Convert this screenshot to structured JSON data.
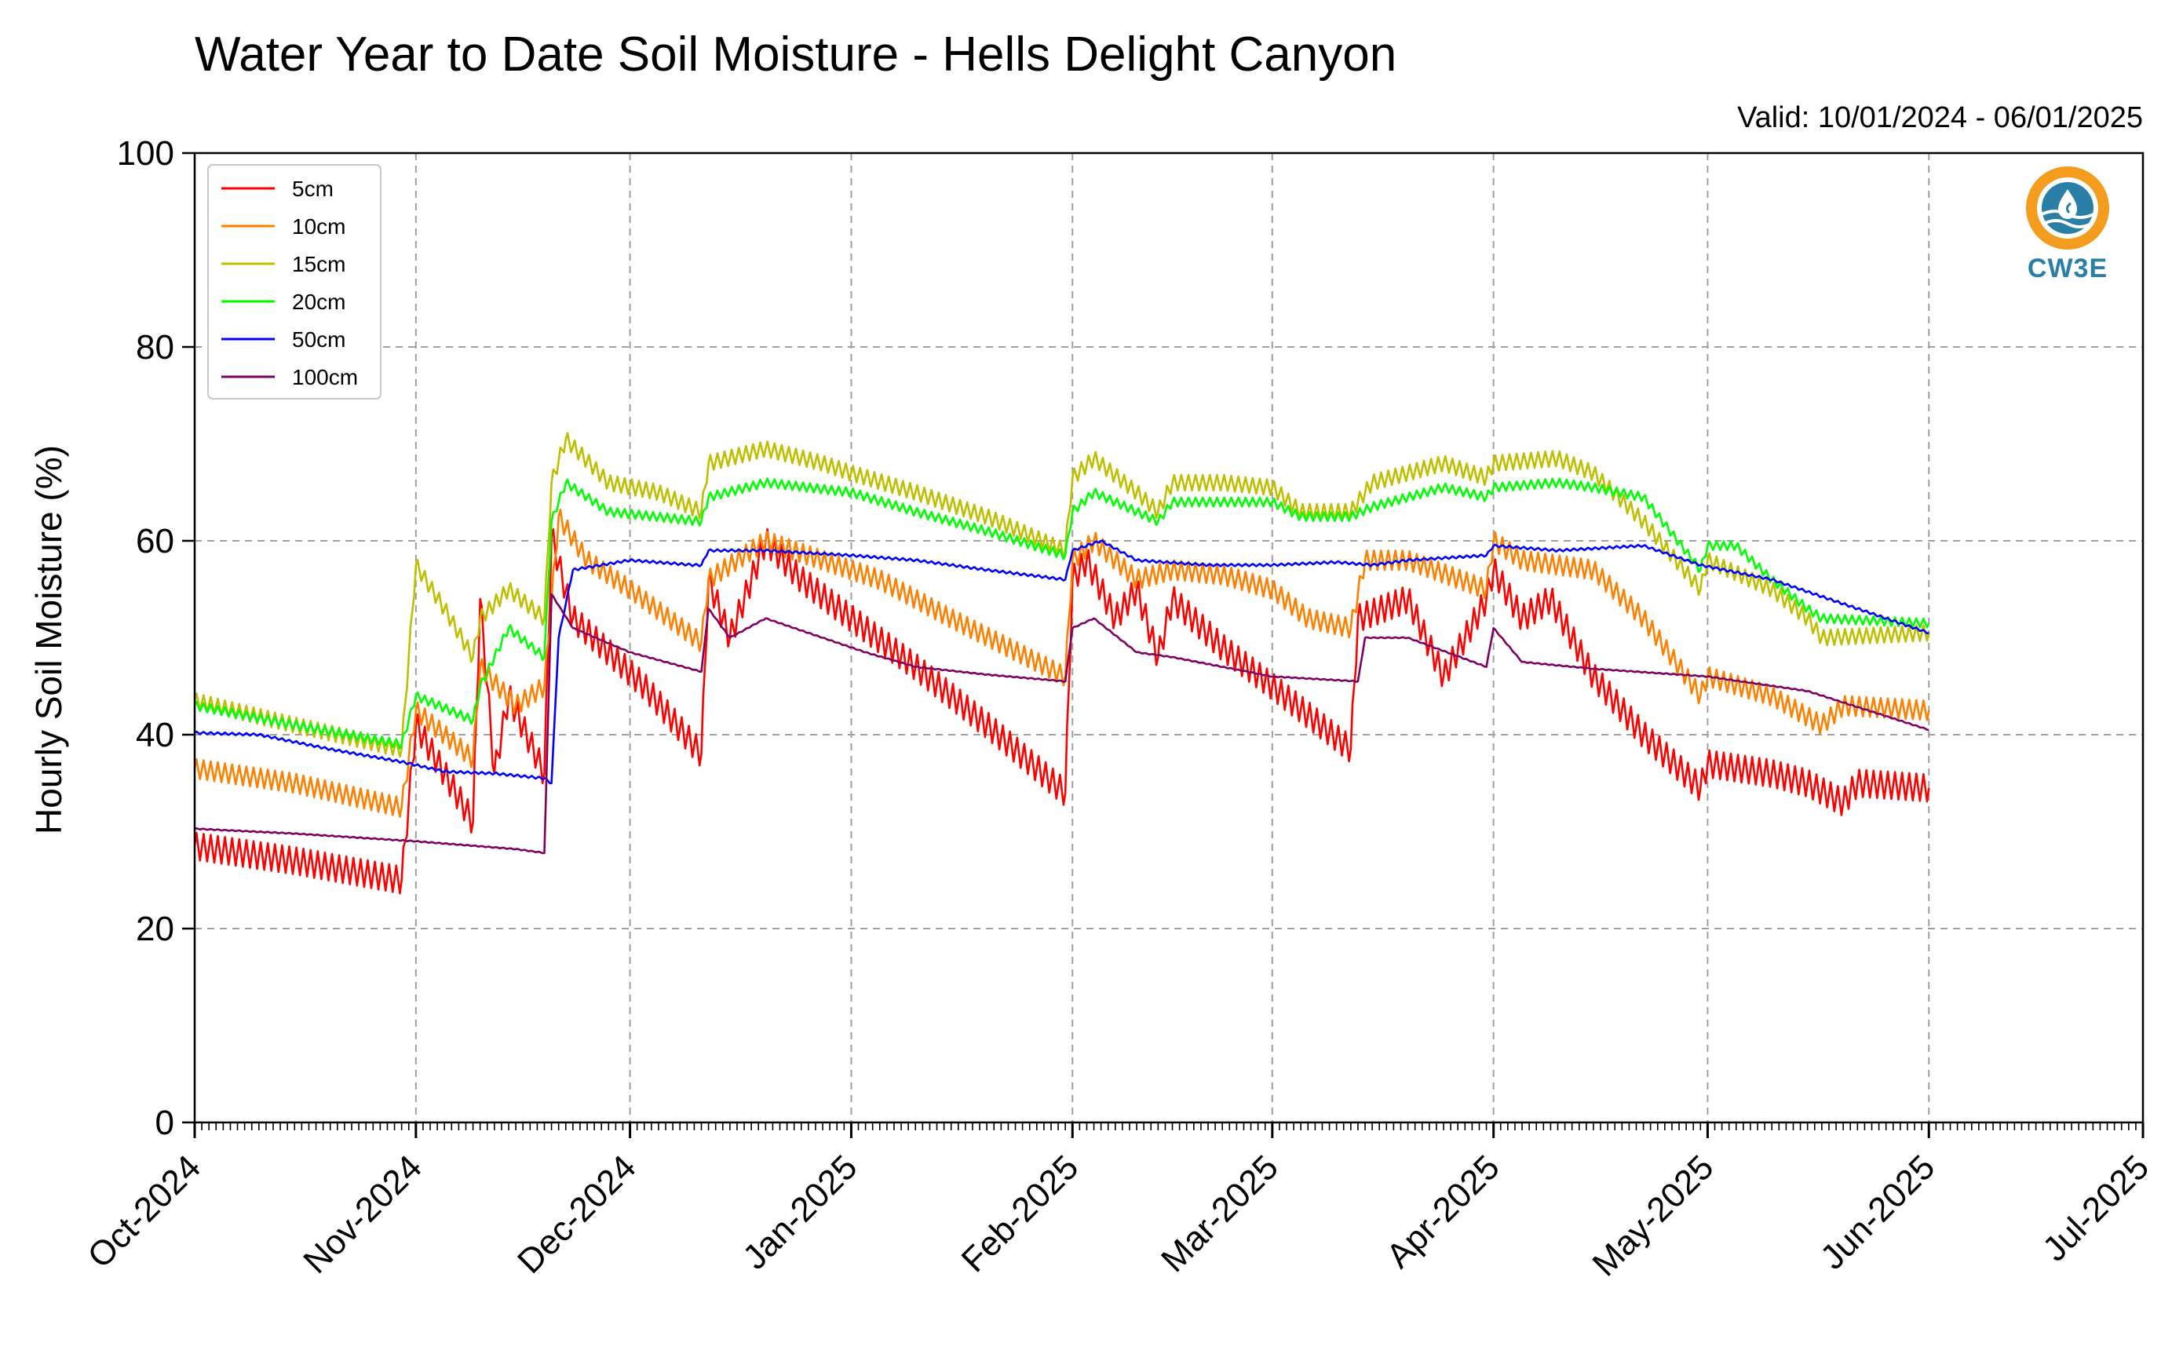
{
  "chart_data": {
    "type": "line",
    "title": "Water Year to Date Soil Moisture - Hells Delight Canyon",
    "subtitle": "Valid: 10/01/2024 - 06/01/2025",
    "xlabel": "",
    "ylabel": "Hourly Soil Moisture (%)",
    "ylim": [
      0,
      100
    ],
    "yticks": [
      "0",
      "20",
      "40",
      "60",
      "80",
      "100"
    ],
    "xlim": [
      "2024-10-01",
      "2025-07-01"
    ],
    "xticks": [
      "Oct-2024",
      "Nov-2024",
      "Dec-2024",
      "Jan-2025",
      "Feb-2025",
      "Mar-2025",
      "Apr-2025",
      "May-2025",
      "Jun-2025",
      "Jul-2025"
    ],
    "grid": true,
    "legend_position": "top-left",
    "logo_text": "CW3E",
    "colors": {
      "logo_orange": "#f39c1e",
      "logo_blue": "#2a7fa6"
    },
    "series": [
      {
        "name": "5cm",
        "color": "#ff0000",
        "points": [
          [
            "2024-10-01",
            28.5
          ],
          [
            "2024-10-15",
            27.0
          ],
          [
            "2024-10-30",
            25.0
          ],
          [
            "2024-11-01",
            41.0
          ],
          [
            "2024-11-09",
            31.0
          ],
          [
            "2024-11-10",
            54.0
          ],
          [
            "2024-11-12",
            36.0
          ],
          [
            "2024-11-14",
            44.0
          ],
          [
            "2024-11-19",
            36.0
          ],
          [
            "2024-11-20",
            60.5
          ],
          [
            "2024-11-23",
            52.0
          ],
          [
            "2024-12-03",
            45.0
          ],
          [
            "2024-12-11",
            38.0
          ],
          [
            "2024-12-12",
            56.0
          ],
          [
            "2024-12-15",
            50.0
          ],
          [
            "2024-12-20",
            60.0
          ],
          [
            "2024-12-25",
            56.0
          ],
          [
            "2025-01-01",
            52.0
          ],
          [
            "2025-01-10",
            47.0
          ],
          [
            "2025-01-20",
            41.0
          ],
          [
            "2025-01-31",
            34.0
          ],
          [
            "2025-02-01",
            56.0
          ],
          [
            "2025-02-03",
            58.0
          ],
          [
            "2025-02-07",
            52.0
          ],
          [
            "2025-02-10",
            55.0
          ],
          [
            "2025-02-13",
            48.0
          ],
          [
            "2025-02-15",
            54.0
          ],
          [
            "2025-02-22",
            49.0
          ],
          [
            "2025-03-01",
            45.0
          ],
          [
            "2025-03-12",
            38.5
          ],
          [
            "2025-03-13",
            52.0
          ],
          [
            "2025-03-20",
            54.0
          ],
          [
            "2025-03-25",
            46.0
          ],
          [
            "2025-03-31",
            54.0
          ],
          [
            "2025-04-01",
            57.0
          ],
          [
            "2025-04-05",
            52.0
          ],
          [
            "2025-04-09",
            54.0
          ],
          [
            "2025-04-15",
            46.0
          ],
          [
            "2025-04-22",
            40.0
          ],
          [
            "2025-04-30",
            34.5
          ],
          [
            "2025-05-01",
            37.0
          ],
          [
            "2025-05-10",
            36.0
          ],
          [
            "2025-05-15",
            35.0
          ],
          [
            "2025-05-20",
            33.0
          ],
          [
            "2025-05-22",
            35.0
          ],
          [
            "2025-06-01",
            34.5
          ]
        ]
      },
      {
        "name": "10cm",
        "color": "#ff8000",
        "points": [
          [
            "2024-10-01",
            36.5
          ],
          [
            "2024-10-15",
            35.0
          ],
          [
            "2024-10-30",
            32.5
          ],
          [
            "2024-11-01",
            42.5
          ],
          [
            "2024-11-09",
            37.5
          ],
          [
            "2024-11-10",
            47.0
          ],
          [
            "2024-11-15",
            43.0
          ],
          [
            "2024-11-19",
            45.0
          ],
          [
            "2024-11-21",
            62.5
          ],
          [
            "2024-11-25",
            58.0
          ],
          [
            "2024-12-01",
            55.0
          ],
          [
            "2024-12-11",
            49.5
          ],
          [
            "2024-12-12",
            56.0
          ],
          [
            "2024-12-20",
            60.0
          ],
          [
            "2024-12-28",
            58.0
          ],
          [
            "2025-01-05",
            56.0
          ],
          [
            "2025-01-15",
            52.0
          ],
          [
            "2025-01-31",
            46.0
          ],
          [
            "2025-02-01",
            58.0
          ],
          [
            "2025-02-04",
            60.0
          ],
          [
            "2025-02-10",
            56.0
          ],
          [
            "2025-02-15",
            57.0
          ],
          [
            "2025-02-22",
            56.5
          ],
          [
            "2025-03-01",
            55.0
          ],
          [
            "2025-03-06",
            52.0
          ],
          [
            "2025-03-12",
            51.0
          ],
          [
            "2025-03-14",
            58.0
          ],
          [
            "2025-03-20",
            58.0
          ],
          [
            "2025-03-31",
            55.0
          ],
          [
            "2025-04-01",
            60.0
          ],
          [
            "2025-04-05",
            58.0
          ],
          [
            "2025-04-15",
            57.0
          ],
          [
            "2025-04-22",
            52.0
          ],
          [
            "2025-04-30",
            44.0
          ],
          [
            "2025-05-01",
            46.0
          ],
          [
            "2025-05-10",
            44.0
          ],
          [
            "2025-05-17",
            41.0
          ],
          [
            "2025-05-20",
            43.0
          ],
          [
            "2025-06-01",
            42.5
          ]
        ]
      },
      {
        "name": "15cm",
        "color": "#bfbf00",
        "points": [
          [
            "2024-10-01",
            43.5
          ],
          [
            "2024-10-15",
            41.0
          ],
          [
            "2024-10-30",
            38.5
          ],
          [
            "2024-11-01",
            57.5
          ],
          [
            "2024-11-05",
            53.0
          ],
          [
            "2024-11-09",
            48.0
          ],
          [
            "2024-11-10",
            52.0
          ],
          [
            "2024-11-14",
            55.0
          ],
          [
            "2024-11-19",
            52.0
          ],
          [
            "2024-11-20",
            66.0
          ],
          [
            "2024-11-22",
            70.5
          ],
          [
            "2024-11-28",
            66.0
          ],
          [
            "2024-12-05",
            65.0
          ],
          [
            "2024-12-11",
            63.0
          ],
          [
            "2024-12-12",
            68.0
          ],
          [
            "2024-12-20",
            69.5
          ],
          [
            "2024-12-28",
            68.0
          ],
          [
            "2025-01-01",
            67.0
          ],
          [
            "2025-01-10",
            65.0
          ],
          [
            "2025-01-20",
            62.5
          ],
          [
            "2025-01-31",
            59.0
          ],
          [
            "2025-02-01",
            66.5
          ],
          [
            "2025-02-04",
            68.5
          ],
          [
            "2025-02-10",
            65.0
          ],
          [
            "2025-02-13",
            63.0
          ],
          [
            "2025-02-15",
            66.0
          ],
          [
            "2025-02-22",
            66.0
          ],
          [
            "2025-03-01",
            65.5
          ],
          [
            "2025-03-05",
            63.0
          ],
          [
            "2025-03-12",
            63.0
          ],
          [
            "2025-03-15",
            66.0
          ],
          [
            "2025-03-25",
            68.0
          ],
          [
            "2025-03-31",
            66.5
          ],
          [
            "2025-04-01",
            68.0
          ],
          [
            "2025-04-10",
            68.5
          ],
          [
            "2025-04-15",
            67.0
          ],
          [
            "2025-04-22",
            62.0
          ],
          [
            "2025-04-30",
            55.0
          ],
          [
            "2025-05-01",
            58.0
          ],
          [
            "2025-05-10",
            55.0
          ],
          [
            "2025-05-15",
            52.0
          ],
          [
            "2025-05-17",
            50.0
          ],
          [
            "2025-06-01",
            50.5
          ]
        ]
      },
      {
        "name": "20cm",
        "color": "#00ff00",
        "points": [
          [
            "2024-10-01",
            43.0
          ],
          [
            "2024-10-15",
            41.0
          ],
          [
            "2024-10-30",
            39.0
          ],
          [
            "2024-11-01",
            44.0
          ],
          [
            "2024-11-09",
            41.5
          ],
          [
            "2024-11-10",
            45.0
          ],
          [
            "2024-11-14",
            51.0
          ],
          [
            "2024-11-19",
            48.0
          ],
          [
            "2024-11-20",
            62.0
          ],
          [
            "2024-11-22",
            66.0
          ],
          [
            "2024-11-28",
            63.0
          ],
          [
            "2024-12-11",
            62.0
          ],
          [
            "2024-12-12",
            64.5
          ],
          [
            "2024-12-20",
            66.0
          ],
          [
            "2025-01-01",
            65.0
          ],
          [
            "2025-01-10",
            63.0
          ],
          [
            "2025-01-20",
            61.0
          ],
          [
            "2025-01-31",
            58.5
          ],
          [
            "2025-02-01",
            63.0
          ],
          [
            "2025-02-04",
            65.0
          ],
          [
            "2025-02-10",
            63.0
          ],
          [
            "2025-02-13",
            62.0
          ],
          [
            "2025-02-15",
            64.0
          ],
          [
            "2025-03-01",
            64.0
          ],
          [
            "2025-03-05",
            62.5
          ],
          [
            "2025-03-12",
            62.5
          ],
          [
            "2025-03-15",
            63.5
          ],
          [
            "2025-03-25",
            65.5
          ],
          [
            "2025-03-31",
            64.5
          ],
          [
            "2025-04-01",
            65.5
          ],
          [
            "2025-04-10",
            66.0
          ],
          [
            "2025-04-15",
            65.5
          ],
          [
            "2025-04-22",
            64.5
          ],
          [
            "2025-04-30",
            57.0
          ],
          [
            "2025-05-01",
            59.5
          ],
          [
            "2025-05-05",
            59.5
          ],
          [
            "2025-05-10",
            56.0
          ],
          [
            "2025-05-15",
            53.0
          ],
          [
            "2025-05-17",
            52.0
          ],
          [
            "2025-06-01",
            51.5
          ]
        ]
      },
      {
        "name": "50cm",
        "color": "#0000ff",
        "points": [
          [
            "2024-10-01",
            40.2
          ],
          [
            "2024-10-10",
            40.0
          ],
          [
            "2024-10-20",
            38.5
          ],
          [
            "2024-10-30",
            37.2
          ],
          [
            "2024-11-05",
            36.2
          ],
          [
            "2024-11-12",
            36.0
          ],
          [
            "2024-11-19",
            35.5
          ],
          [
            "2024-11-20",
            35.0
          ],
          [
            "2024-11-21",
            50.0
          ],
          [
            "2024-11-23",
            57.0
          ],
          [
            "2024-12-01",
            58.0
          ],
          [
            "2024-12-10",
            57.5
          ],
          [
            "2024-12-11",
            57.5
          ],
          [
            "2024-12-12",
            59.0
          ],
          [
            "2024-12-20",
            59.0
          ],
          [
            "2025-01-01",
            58.5
          ],
          [
            "2025-01-10",
            58.0
          ],
          [
            "2025-01-20",
            57.0
          ],
          [
            "2025-01-31",
            56.0
          ],
          [
            "2025-02-01",
            59.0
          ],
          [
            "2025-02-05",
            60.0
          ],
          [
            "2025-02-10",
            58.0
          ],
          [
            "2025-02-20",
            57.5
          ],
          [
            "2025-03-01",
            57.5
          ],
          [
            "2025-03-10",
            57.8
          ],
          [
            "2025-03-15",
            57.5
          ],
          [
            "2025-03-20",
            58.0
          ],
          [
            "2025-03-31",
            58.5
          ],
          [
            "2025-04-01",
            59.5
          ],
          [
            "2025-04-10",
            59.0
          ],
          [
            "2025-04-22",
            59.5
          ],
          [
            "2025-04-30",
            57.5
          ],
          [
            "2025-05-10",
            56.0
          ],
          [
            "2025-05-20",
            53.5
          ],
          [
            "2025-06-01",
            50.5
          ]
        ]
      },
      {
        "name": "100cm",
        "color": "#800060",
        "points": [
          [
            "2024-10-01",
            30.3
          ],
          [
            "2024-10-15",
            29.8
          ],
          [
            "2024-11-01",
            29.0
          ],
          [
            "2024-11-15",
            28.2
          ],
          [
            "2024-11-19",
            27.8
          ],
          [
            "2024-11-20",
            54.5
          ],
          [
            "2024-11-23",
            51.0
          ],
          [
            "2024-12-01",
            48.5
          ],
          [
            "2024-12-11",
            46.5
          ],
          [
            "2024-12-12",
            53.0
          ],
          [
            "2024-12-15",
            50.0
          ],
          [
            "2024-12-20",
            52.0
          ],
          [
            "2024-12-28",
            50.0
          ],
          [
            "2025-01-03",
            48.5
          ],
          [
            "2025-01-10",
            47.0
          ],
          [
            "2025-01-20",
            46.2
          ],
          [
            "2025-01-31",
            45.5
          ],
          [
            "2025-02-01",
            51.0
          ],
          [
            "2025-02-04",
            52.0
          ],
          [
            "2025-02-10",
            48.5
          ],
          [
            "2025-02-15",
            48.0
          ],
          [
            "2025-03-01",
            46.0
          ],
          [
            "2025-03-13",
            45.5
          ],
          [
            "2025-03-14",
            50.0
          ],
          [
            "2025-03-20",
            50.0
          ],
          [
            "2025-03-31",
            47.0
          ],
          [
            "2025-04-01",
            51.0
          ],
          [
            "2025-04-05",
            47.5
          ],
          [
            "2025-04-15",
            46.8
          ],
          [
            "2025-05-01",
            46.0
          ],
          [
            "2025-05-15",
            44.5
          ],
          [
            "2025-06-01",
            40.5
          ]
        ]
      }
    ]
  }
}
